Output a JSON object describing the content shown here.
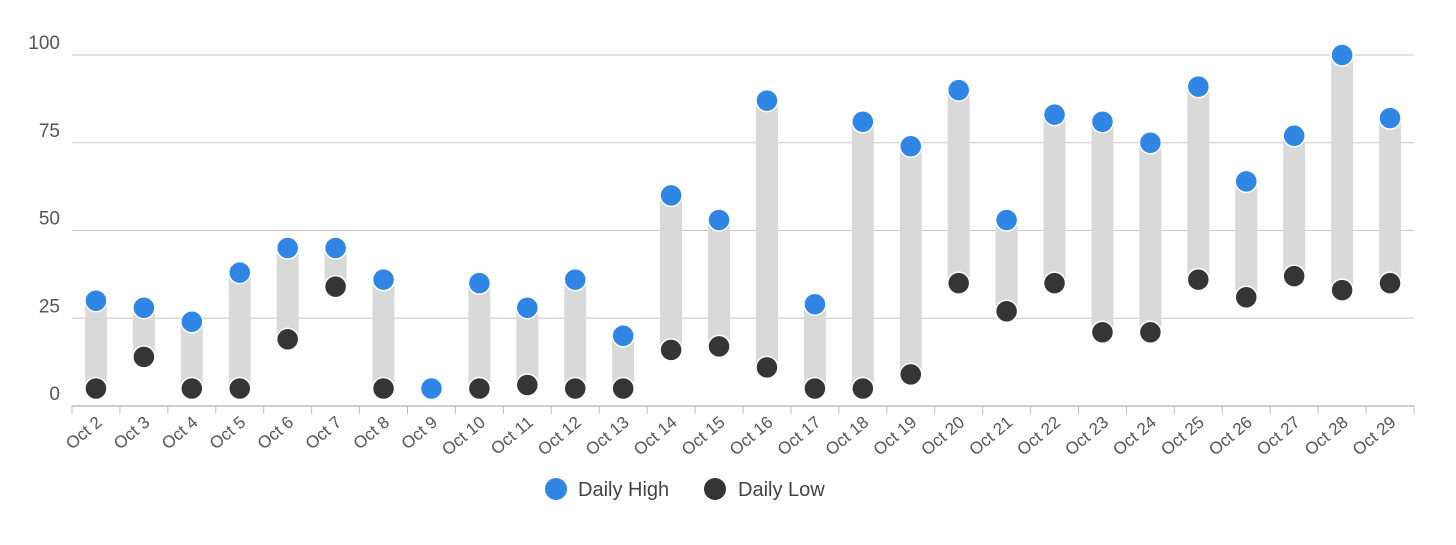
{
  "chart_data": {
    "type": "dumbbell",
    "title": "",
    "xlabel": "",
    "ylabel": "",
    "ylim": [
      0,
      100
    ],
    "yticks": [
      "0",
      "25",
      "50",
      "75",
      "100"
    ],
    "grid": true,
    "legend_position": "bottom-center",
    "categories": [
      "Oct 2",
      "Oct 3",
      "Oct 4",
      "Oct 5",
      "Oct 6",
      "Oct 7",
      "Oct 8",
      "Oct 9",
      "Oct 10",
      "Oct 11",
      "Oct 12",
      "Oct 13",
      "Oct 14",
      "Oct 15",
      "Oct 16",
      "Oct 17",
      "Oct 18",
      "Oct 19",
      "Oct 20",
      "Oct 21",
      "Oct 22",
      "Oct 23",
      "Oct 24",
      "Oct 25",
      "Oct 26",
      "Oct 27",
      "Oct 28",
      "Oct 29"
    ],
    "series": [
      {
        "name": "Daily High",
        "color": "#2f86e4",
        "values": [
          30,
          28,
          24,
          38,
          45,
          45,
          36,
          5,
          35,
          28,
          36,
          20,
          60,
          53,
          87,
          29,
          81,
          74,
          90,
          53,
          83,
          81,
          75,
          91,
          64,
          77,
          100,
          82
        ]
      },
      {
        "name": "Daily Low",
        "color": "#353535",
        "values": [
          5,
          14,
          5,
          5,
          19,
          34,
          5,
          5,
          5,
          6,
          5,
          5,
          16,
          17,
          11,
          5,
          5,
          9,
          35,
          27,
          35,
          21,
          21,
          36,
          31,
          37,
          33,
          35
        ]
      }
    ],
    "range_bar_color": "#d9d9d9",
    "gridline_color": "#c8c8c8"
  }
}
